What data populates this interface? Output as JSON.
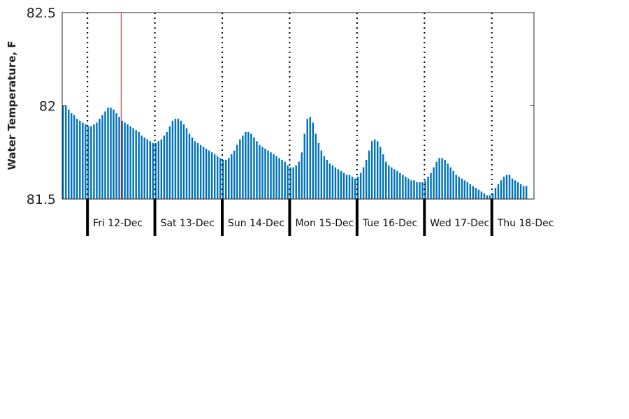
{
  "chart_data": {
    "type": "bar",
    "title": "",
    "xlabel": "",
    "ylabel": "Water Temperature, F",
    "ylim": [
      81.5,
      82.5
    ],
    "yticks": [
      "81.5",
      "82",
      "82.5"
    ],
    "ytick_values": [
      81.5,
      82.0,
      82.5
    ],
    "grid": false,
    "day_labels": [
      "Fri 12-Dec",
      "Sat 13-Dec",
      "Sun 14-Dec",
      "Mon 15-Dec",
      "Tue 16-Dec",
      "Wed 17-Dec",
      "Thu 18-Dec"
    ],
    "x_start_day": -0.375,
    "x_end_day": 6.625,
    "samples_per_day": 24,
    "current_time_day": 0.5,
    "series": [
      {
        "values": [
          82.0,
          82.0,
          81.98,
          81.96,
          81.95,
          81.93,
          81.92,
          81.91,
          81.9,
          81.89,
          81.89,
          81.9,
          81.91,
          81.93,
          81.95,
          81.97,
          81.99,
          81.99,
          81.98,
          81.96,
          81.94,
          81.92,
          81.91,
          81.9,
          81.89,
          81.88,
          81.87,
          81.86,
          81.84,
          81.83,
          81.82,
          81.81,
          81.8,
          81.8,
          81.81,
          81.82,
          81.84,
          81.86,
          81.89,
          81.92,
          81.93,
          81.93,
          81.92,
          81.9,
          81.88,
          81.85,
          81.83,
          81.81,
          81.8,
          81.79,
          81.78,
          81.77,
          81.76,
          81.75,
          81.74,
          81.73,
          81.72,
          81.71,
          81.71,
          81.72,
          81.74,
          81.76,
          81.79,
          81.82,
          81.84,
          81.86,
          81.86,
          81.85,
          81.83,
          81.81,
          81.79,
          81.78,
          81.77,
          81.76,
          81.75,
          81.74,
          81.73,
          81.72,
          81.71,
          81.7,
          81.68,
          81.67,
          81.67,
          81.68,
          81.7,
          81.75,
          81.85,
          81.93,
          81.94,
          81.91,
          81.85,
          81.8,
          81.76,
          81.73,
          81.71,
          81.69,
          81.68,
          81.67,
          81.66,
          81.65,
          81.64,
          81.63,
          81.63,
          81.62,
          81.61,
          81.62,
          81.64,
          81.67,
          81.71,
          81.76,
          81.81,
          81.82,
          81.81,
          81.78,
          81.74,
          81.7,
          81.68,
          81.67,
          81.66,
          81.65,
          81.64,
          81.63,
          81.62,
          81.61,
          81.6,
          81.6,
          81.59,
          81.59,
          81.59,
          81.6,
          81.62,
          81.64,
          81.67,
          81.7,
          81.72,
          81.72,
          81.71,
          81.69,
          81.67,
          81.65,
          81.63,
          81.62,
          81.61,
          81.6,
          81.59,
          81.58,
          81.57,
          81.56,
          81.55,
          81.54,
          81.53,
          81.52,
          81.52,
          81.53,
          81.56,
          81.58,
          81.6,
          81.62,
          81.63,
          81.63,
          81.61,
          81.6,
          81.59,
          81.58,
          81.57,
          81.57
        ]
      }
    ]
  },
  "colors": {
    "bar": "#0072bd",
    "current_time_line": "#ff0000",
    "day_divider": "#000000",
    "axis": "#222222"
  }
}
